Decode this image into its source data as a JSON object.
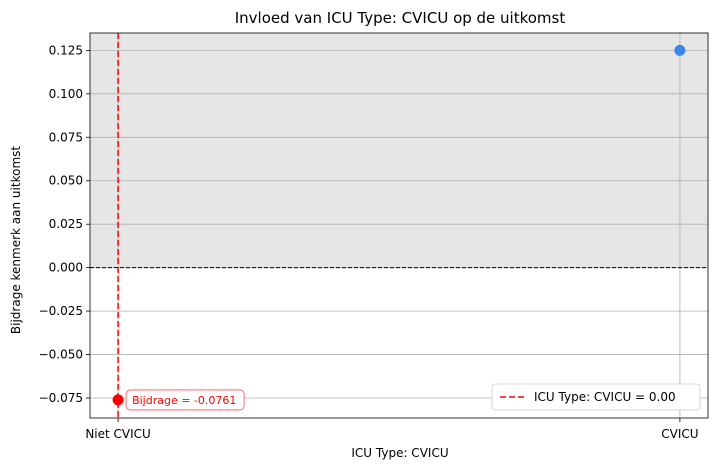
{
  "chart_data": {
    "type": "scatter",
    "title": "Invloed van ICU Type: CVICU op de uitkomst",
    "xlabel": "ICU Type: CVICU",
    "ylabel": "Bijdrage kenmerk aan uitkomst",
    "categories": [
      "Niet CVICU",
      "CVICU"
    ],
    "x_values": [
      0,
      1
    ],
    "xlim": [
      -0.05,
      1.05
    ],
    "ylim": [
      -0.0865,
      0.135
    ],
    "yticks": [
      -0.075,
      -0.05,
      -0.025,
      0.0,
      0.025,
      0.05,
      0.075,
      0.1,
      0.125
    ],
    "ytick_labels": [
      "−0.075",
      "−0.050",
      "−0.025",
      "0.000",
      "0.025",
      "0.050",
      "0.075",
      "0.100",
      "0.125"
    ],
    "grid": true,
    "points": [
      {
        "x": 0,
        "y": -0.0761,
        "color": "#ff0000"
      },
      {
        "x": 1,
        "y": 0.125,
        "color": "#3a86e8"
      }
    ],
    "shaded_region": {
      "y_from": 0,
      "y_to": 0.135,
      "color": "#e6e6e6"
    },
    "zero_line": {
      "y": 0,
      "color": "#000000",
      "style": "dashed"
    },
    "current_value_line": {
      "x": 0,
      "color": "#ff0000",
      "style": "dashed"
    },
    "annotation": {
      "text": "Bijdrage = -0.0761",
      "color": "#ff0000",
      "x": 0,
      "y": -0.0761
    },
    "legend": {
      "position": "bottom-right",
      "entries": [
        {
          "label": "ICU Type: CVICU = 0.00",
          "color": "#ff0000",
          "style": "dashed"
        }
      ]
    }
  }
}
